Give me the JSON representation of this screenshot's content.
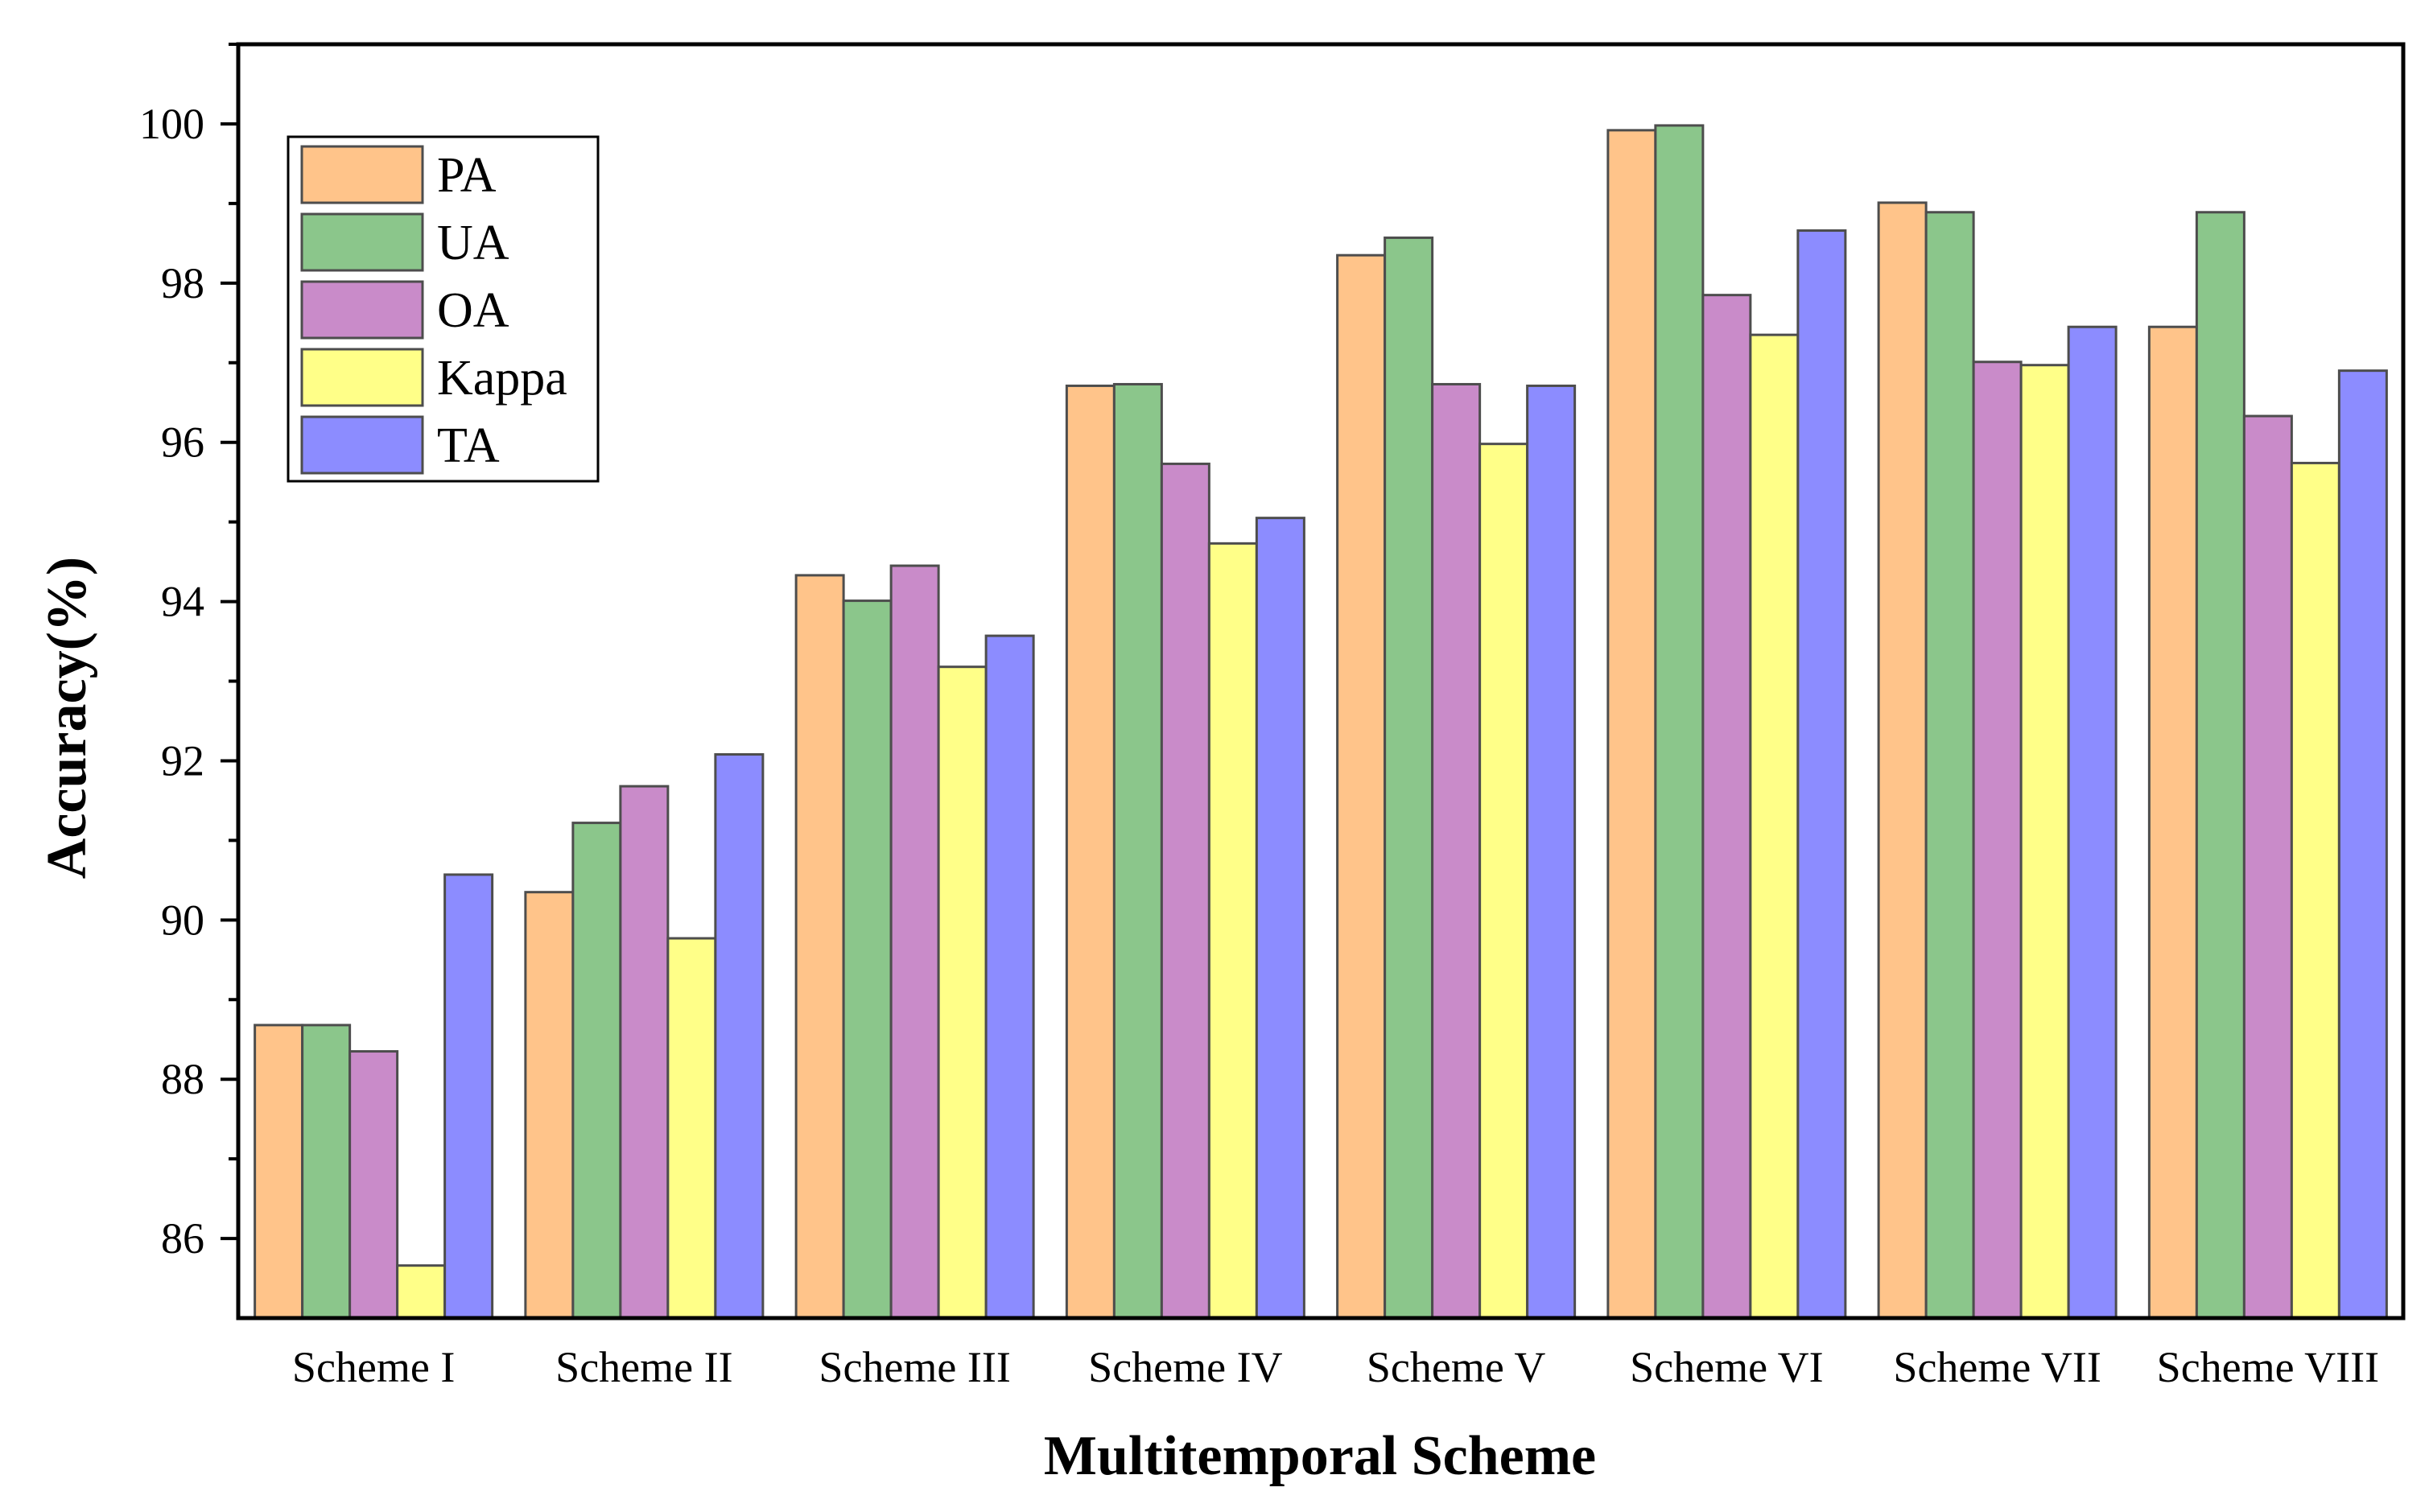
{
  "chart_data": {
    "type": "bar",
    "title": "",
    "xlabel": "Multitemporal Scheme",
    "ylabel": "Accuracy(%)",
    "ylim": [
      85,
      101
    ],
    "yticks": [
      86,
      88,
      90,
      92,
      94,
      96,
      98,
      100
    ],
    "grid": false,
    "legend_position": "top-left",
    "categories": [
      "Scheme I",
      "Scheme II",
      "Scheme III",
      "Scheme IV",
      "Scheme V",
      "Scheme VI",
      "Scheme VII",
      "Scheme VIII"
    ],
    "series": [
      {
        "name": "PA",
        "color": "#FFC48A",
        "values": [
          88.68,
          90.35,
          94.33,
          96.71,
          98.35,
          99.92,
          99.01,
          97.45
        ]
      },
      {
        "name": "UA",
        "color": "#8BC68B",
        "values": [
          88.68,
          91.22,
          94.01,
          96.73,
          98.57,
          99.98,
          98.89,
          98.89
        ]
      },
      {
        "name": "OA",
        "color": "#C98BC9",
        "values": [
          88.35,
          91.68,
          94.45,
          95.73,
          96.73,
          97.85,
          97.01,
          96.33
        ]
      },
      {
        "name": "Kappa",
        "color": "#FFFF88",
        "values": [
          85.66,
          89.77,
          93.18,
          94.73,
          95.98,
          97.35,
          96.97,
          95.74
        ]
      },
      {
        "name": "TA",
        "color": "#8C8CFF",
        "values": [
          90.57,
          92.08,
          93.57,
          95.05,
          96.71,
          98.66,
          97.45,
          96.9
        ]
      }
    ]
  }
}
